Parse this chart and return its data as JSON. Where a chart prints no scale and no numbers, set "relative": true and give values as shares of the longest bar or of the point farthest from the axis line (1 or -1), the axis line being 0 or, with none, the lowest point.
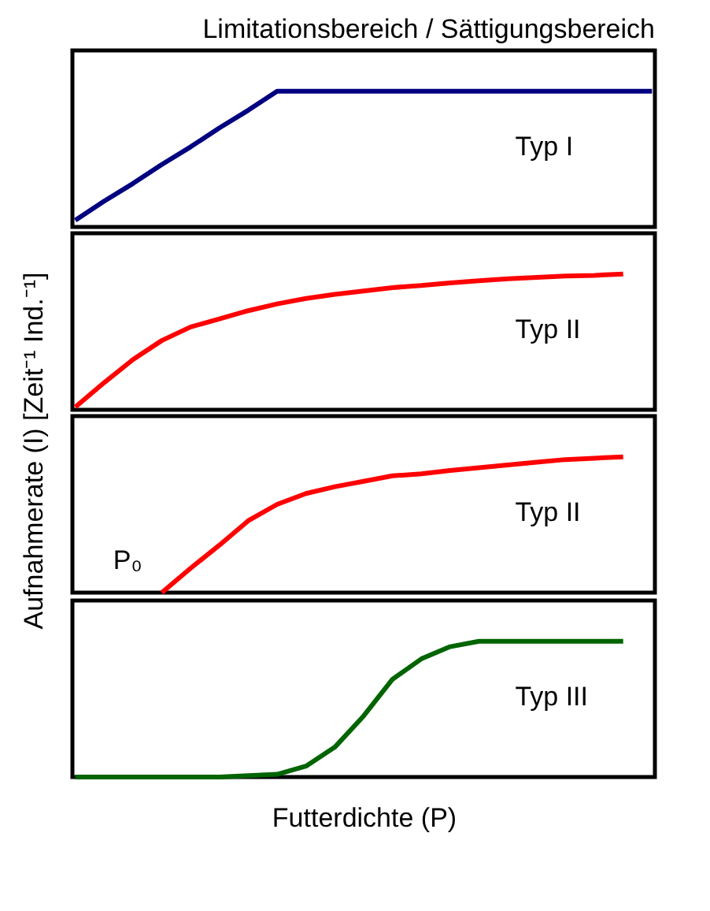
{
  "chart_data": [
    {
      "type": "line",
      "relative": true,
      "title": "Limitationsbereich / Sättigungsbereich",
      "ylabel": "Aufnahmerate (I) [Zeit⁻¹ Ind.⁻¹]",
      "tick_labels": false,
      "categories": [
        null,
        null,
        null,
        null,
        null,
        null,
        null,
        null,
        null,
        null,
        null,
        null,
        null,
        null,
        null,
        null,
        null,
        null,
        null,
        null,
        null
      ],
      "series": [
        {
          "color": "#000080",
          "values": [
            0.05,
            0.19,
            0.32,
            0.46,
            0.59,
            0.73,
            0.86,
            1,
            1,
            1,
            1,
            1,
            1,
            1,
            1,
            1,
            1,
            1,
            1,
            1,
            1
          ]
        }
      ],
      "annotations": [
        "Typ I"
      ]
    },
    {
      "type": "line",
      "relative": true,
      "tick_labels": false,
      "categories": [
        null,
        null,
        null,
        null,
        null,
        null,
        null,
        null,
        null,
        null,
        null,
        null,
        null,
        null,
        null,
        null,
        null,
        null,
        null,
        null,
        null
      ],
      "series": [
        {
          "color": "#ff0000",
          "values": [
            0.02,
            0.2,
            0.37,
            0.51,
            0.61,
            0.67,
            0.73,
            0.78,
            0.82,
            0.85,
            0.875,
            0.9,
            0.915,
            0.935,
            0.95,
            0.965,
            0.975,
            0.985,
            0.99,
            1,
            null
          ]
        }
      ],
      "annotations": [
        "Typ II"
      ]
    },
    {
      "type": "line",
      "relative": true,
      "tick_labels": false,
      "categories": [
        null,
        null,
        null,
        null,
        null,
        null,
        null,
        null,
        null,
        null,
        null,
        null,
        null,
        null,
        null,
        null,
        null,
        null,
        null,
        null,
        null
      ],
      "series": [
        {
          "color": "#ff0000",
          "values": [
            null,
            null,
            null,
            0,
            0.18,
            0.35,
            0.53,
            0.65,
            0.73,
            0.78,
            0.82,
            0.86,
            0.875,
            0.9,
            0.92,
            0.94,
            0.96,
            0.98,
            0.99,
            1,
            null
          ]
        }
      ],
      "annotations": [
        "Typ II",
        "P₀"
      ]
    },
    {
      "type": "line",
      "relative": true,
      "xlabel": "Futterdichte (P)",
      "tick_labels": false,
      "categories": [
        null,
        null,
        null,
        null,
        null,
        null,
        null,
        null,
        null,
        null,
        null,
        null,
        null,
        null,
        null,
        null,
        null,
        null,
        null,
        null,
        null
      ],
      "series": [
        {
          "color": "#006400",
          "values": [
            0,
            0,
            0,
            0,
            0,
            0,
            0.01,
            0.02,
            0.08,
            0.22,
            0.45,
            0.72,
            0.87,
            0.96,
            1,
            1,
            1,
            1,
            1,
            1,
            null
          ]
        }
      ],
      "annotations": [
        "Typ III"
      ]
    }
  ]
}
